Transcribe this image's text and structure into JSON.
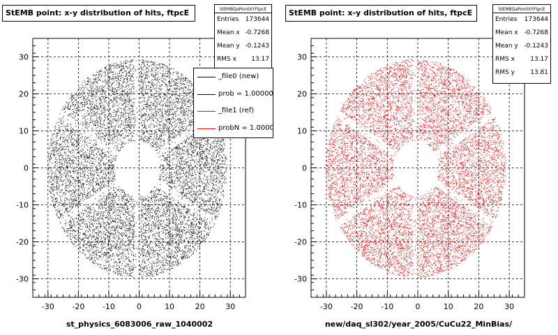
{
  "colors": {
    "left": "#000000",
    "right": "#ff0000"
  },
  "chart_data": [
    {
      "type": "scatter",
      "title": "StEMB point: x-y distribution of hits, ftpcE",
      "xlabel": "st_physics_6083006_raw_1040002",
      "ylabel": "",
      "xlim": [
        -35,
        35
      ],
      "ylim": [
        -35,
        35
      ],
      "xticks": [
        -30,
        -20,
        -10,
        0,
        10,
        20,
        30
      ],
      "yticks": [
        -30,
        -20,
        -10,
        0,
        10,
        20,
        30
      ],
      "grid": true,
      "color": "#000000",
      "stats": {
        "title": "StEMBQaPointXYFtpcE",
        "rows": [
          {
            "label": "Entries",
            "value": "173644"
          },
          {
            "label": "Mean x",
            "value": "-0.7268"
          },
          {
            "label": "Mean y",
            "value": "-0.1243"
          },
          {
            "label": "RMS x",
            "value": "13.17"
          }
        ]
      },
      "legend": {
        "placement": "top-right",
        "entries": [
          {
            "label": "_file0 (new)",
            "color": "#000000"
          },
          {
            "label": "prob = 1.000000",
            "color": "#000000"
          },
          {
            "label": "_file1 (ref)",
            "color": "#ff0000"
          },
          {
            "label": "probN = 1.000000",
            "color": "#ff0000"
          }
        ]
      },
      "distribution": {
        "inner_radius": 7.5,
        "outer_radius": 29.5,
        "center": [
          -0.7,
          -0.1
        ],
        "sector_gap_angles_deg": [
          90,
          30,
          -30,
          -90,
          -150,
          150
        ]
      }
    },
    {
      "type": "scatter",
      "title": "StEMB point: x-y distribution of hits, ftpcE",
      "xlabel": "new/daq_sl302/year_2005/CuCu22_MinBias/",
      "ylabel": "",
      "xlim": [
        -35,
        35
      ],
      "ylim": [
        -35,
        35
      ],
      "xticks": [
        -30,
        -20,
        -10,
        0,
        10,
        20,
        30
      ],
      "yticks": [
        -30,
        -20,
        -10,
        0,
        10,
        20,
        30
      ],
      "grid": true,
      "color": "#ff0000",
      "stats": {
        "title": "StEMBQaPointXYFtpcE",
        "rows": [
          {
            "label": "Entries",
            "value": "173644"
          },
          {
            "label": "Mean x",
            "value": "-0.7268"
          },
          {
            "label": "Mean y",
            "value": "-0.1243"
          },
          {
            "label": "RMS x",
            "value": "13.17"
          },
          {
            "label": "RMS y",
            "value": "13.81"
          }
        ]
      },
      "distribution": {
        "inner_radius": 7.5,
        "outer_radius": 29.5,
        "center": [
          -0.7,
          -0.1
        ],
        "sector_gap_angles_deg": [
          90,
          30,
          -30,
          -90,
          -150,
          150
        ]
      }
    }
  ]
}
